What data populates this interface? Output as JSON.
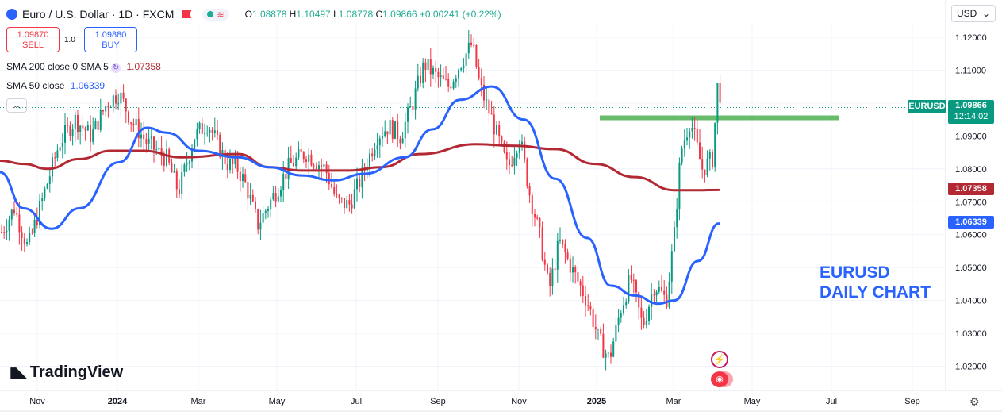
{
  "header": {
    "title": "Euro / U.S. Dollar · 1D · FXCM",
    "open_label": "O",
    "open": "1.08878",
    "high_label": "H",
    "high": "1.10497",
    "low_label": "L",
    "low": "1.08778",
    "close_label": "C",
    "close": "1.09866",
    "change": "+0.00241 (+0.22%)"
  },
  "currency_selector": {
    "value": "USD"
  },
  "trade_panel": {
    "sell_price": "1.09870",
    "sell_label": "SELL",
    "spread": "1.0",
    "buy_price": "1.09880",
    "buy_label": "BUY"
  },
  "indicators": {
    "sma200_label": "SMA 200 close 0 SMA 5",
    "sma200_value": "1.07358",
    "sma50_label": "SMA 50 close",
    "sma50_value": "1.06339"
  },
  "price_tags": {
    "symbol": "EURUSD",
    "last": "1.09866",
    "countdown": "12:14:02",
    "sma200": "1.07358",
    "sma50": "1.06339"
  },
  "annotation": {
    "line1": "EURUSD",
    "line2": "DAILY CHART"
  },
  "branding": {
    "name": "TradingView"
  },
  "colors": {
    "up": "#089981",
    "down": "#f23645",
    "sma50": "#2962ff",
    "sma200": "#b22833",
    "level": "#4caf50"
  },
  "chart_data": {
    "type": "candlestick",
    "title": "Euro / U.S. Dollar · 1D · FXCM",
    "y_ticks": [
      "1.12000",
      "1.11000",
      "1.10000",
      "1.09000",
      "1.08000",
      "1.07000",
      "1.06000",
      "1.05000",
      "1.04000",
      "1.03000",
      "1.02000"
    ],
    "ylim": [
      1.0167,
      1.1233
    ],
    "x_ticks": [
      "Nov",
      "2024",
      "Mar",
      "May",
      "Jul",
      "Sep",
      "Nov",
      "2025",
      "Mar",
      "May",
      "Jul",
      "Sep"
    ],
    "price_path": [
      [
        0,
        1.06
      ],
      [
        18,
        1.068
      ],
      [
        35,
        1.056
      ],
      [
        55,
        1.072
      ],
      [
        75,
        1.088
      ],
      [
        95,
        1.095
      ],
      [
        115,
        1.09
      ],
      [
        135,
        1.1
      ],
      [
        150,
        1.103
      ],
      [
        165,
        1.095
      ],
      [
        185,
        1.088
      ],
      [
        210,
        1.083
      ],
      [
        225,
        1.073
      ],
      [
        245,
        1.09
      ],
      [
        262,
        1.094
      ],
      [
        285,
        1.082
      ],
      [
        300,
        1.08
      ],
      [
        310,
        1.075
      ],
      [
        325,
        1.063
      ],
      [
        345,
        1.072
      ],
      [
        365,
        1.081
      ],
      [
        385,
        1.085
      ],
      [
        410,
        1.08
      ],
      [
        425,
        1.07
      ],
      [
        440,
        1.069
      ],
      [
        455,
        1.077
      ],
      [
        475,
        1.09
      ],
      [
        490,
        1.093
      ],
      [
        505,
        1.09
      ],
      [
        520,
        1.1
      ],
      [
        535,
        1.112
      ],
      [
        550,
        1.108
      ],
      [
        565,
        1.105
      ],
      [
        580,
        1.112
      ],
      [
        595,
        1.118
      ],
      [
        605,
        1.105
      ],
      [
        620,
        1.095
      ],
      [
        640,
        1.08
      ],
      [
        655,
        1.09
      ],
      [
        668,
        1.072
      ],
      [
        680,
        1.06
      ],
      [
        692,
        1.043
      ],
      [
        705,
        1.058
      ],
      [
        720,
        1.05
      ],
      [
        740,
        1.04
      ],
      [
        755,
        1.028
      ],
      [
        768,
        1.022
      ],
      [
        782,
        1.037
      ],
      [
        795,
        1.047
      ],
      [
        810,
        1.032
      ],
      [
        825,
        1.045
      ],
      [
        840,
        1.04
      ],
      [
        850,
        1.06
      ],
      [
        858,
        1.085
      ],
      [
        870,
        1.095
      ],
      [
        885,
        1.08
      ],
      [
        898,
        1.083
      ],
      [
        905,
        1.107
      ],
      [
        910,
        1.099
      ]
    ],
    "sma200": [
      [
        0,
        1.0825
      ],
      [
        30,
        1.0815
      ],
      [
        60,
        1.08
      ],
      [
        100,
        1.083
      ],
      [
        140,
        1.0855
      ],
      [
        180,
        1.0855
      ],
      [
        230,
        1.0835
      ],
      [
        300,
        1.0845
      ],
      [
        340,
        1.0805
      ],
      [
        380,
        1.0795
      ],
      [
        440,
        1.0795
      ],
      [
        480,
        1.0805
      ],
      [
        530,
        1.0845
      ],
      [
        600,
        1.0875
      ],
      [
        650,
        1.087
      ],
      [
        700,
        1.086
      ],
      [
        750,
        1.0815
      ],
      [
        800,
        1.0775
      ],
      [
        850,
        1.0735
      ],
      [
        880,
        1.0735
      ],
      [
        906,
        1.0736
      ]
    ],
    "sma50": [
      [
        0,
        1.079
      ],
      [
        30,
        1.068
      ],
      [
        65,
        1.0618
      ],
      [
        100,
        1.068
      ],
      [
        150,
        1.082
      ],
      [
        185,
        1.0925
      ],
      [
        210,
        1.091
      ],
      [
        250,
        1.0855
      ],
      [
        300,
        1.0835
      ],
      [
        340,
        1.0805
      ],
      [
        380,
        1.078
      ],
      [
        420,
        1.0765
      ],
      [
        460,
        1.0785
      ],
      [
        510,
        1.0835
      ],
      [
        545,
        1.092
      ],
      [
        580,
        1.101
      ],
      [
        620,
        1.105
      ],
      [
        660,
        1.095
      ],
      [
        700,
        1.077
      ],
      [
        740,
        1.059
      ],
      [
        770,
        1.0445
      ],
      [
        800,
        1.0415
      ],
      [
        830,
        1.039
      ],
      [
        850,
        1.04
      ],
      [
        880,
        1.052
      ],
      [
        906,
        1.0634
      ]
    ],
    "series": [
      {
        "name": "SMA 200",
        "value": "1.07358"
      },
      {
        "name": "SMA 50",
        "value": "1.06339"
      }
    ],
    "horizontal_levels": [
      {
        "value": 1.0955,
        "color": "#4caf50"
      },
      {
        "value": 1.09866,
        "style": "dotted",
        "color": "#089981"
      }
    ]
  }
}
